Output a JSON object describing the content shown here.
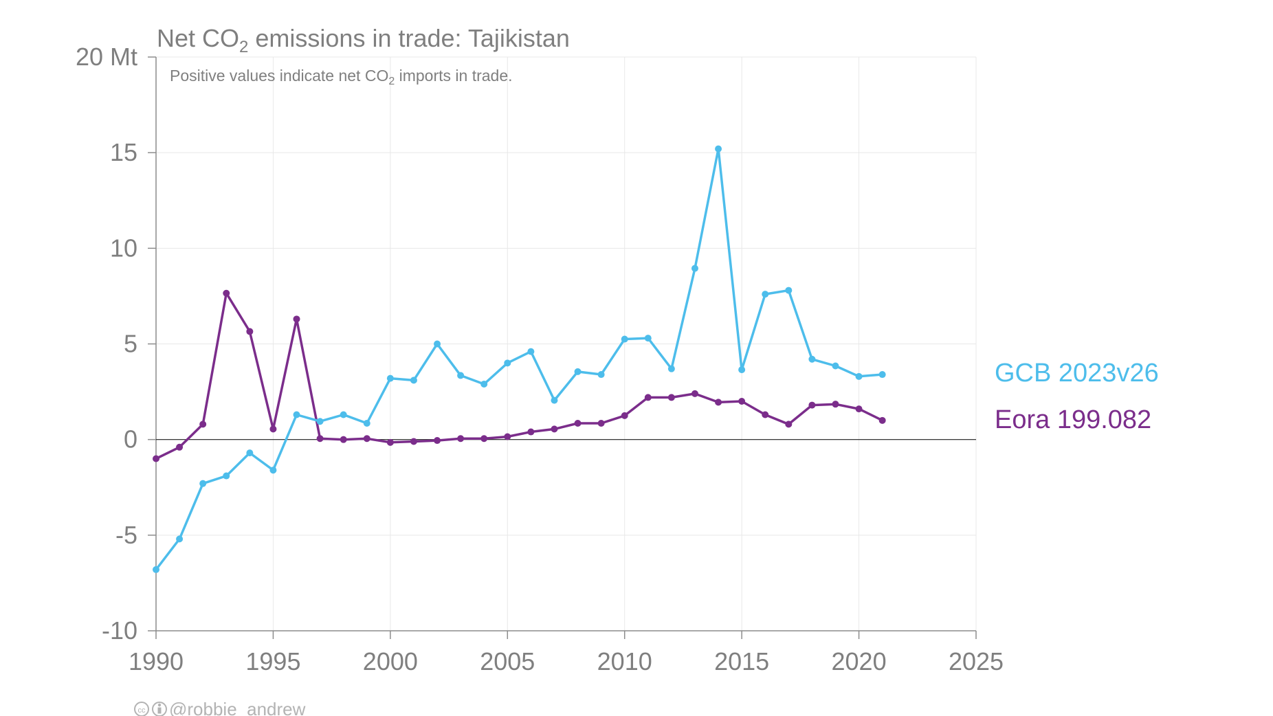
{
  "chart_data": {
    "type": "line",
    "title_prefix": "Net CO",
    "title_sub": "2",
    "title_suffix": " emissions in trade: Tajikistan",
    "subtitle_prefix": "Positive values indicate net CO",
    "subtitle_sub": "2",
    "subtitle_suffix": " imports in trade.",
    "xlim": [
      1990,
      2025
    ],
    "ylim": [
      -10,
      20
    ],
    "x_ticks": [
      1990,
      1995,
      2000,
      2005,
      2010,
      2015,
      2020,
      2025
    ],
    "y_ticks": [
      {
        "value": 20,
        "label": "20 Mt"
      },
      {
        "value": 15,
        "label": "15"
      },
      {
        "value": 10,
        "label": "10"
      },
      {
        "value": 5,
        "label": "5"
      },
      {
        "value": 0,
        "label": "0"
      },
      {
        "value": -5,
        "label": "-5"
      },
      {
        "value": -10,
        "label": "-10"
      }
    ],
    "grid": true,
    "legend_placement": "right",
    "x": [
      1990,
      1991,
      1992,
      1993,
      1994,
      1995,
      1996,
      1997,
      1998,
      1999,
      2000,
      2001,
      2002,
      2003,
      2004,
      2005,
      2006,
      2007,
      2008,
      2009,
      2010,
      2011,
      2012,
      2013,
      2014,
      2015,
      2016,
      2017,
      2018,
      2019,
      2020,
      2021
    ],
    "series": [
      {
        "name": "GCB 2023v26",
        "color": "#4dbdeb",
        "values": [
          -6.8,
          -5.2,
          -2.3,
          -1.9,
          -0.7,
          -1.6,
          1.3,
          0.95,
          1.3,
          0.85,
          3.2,
          3.1,
          5.0,
          3.35,
          2.9,
          4.0,
          4.6,
          2.05,
          3.55,
          3.4,
          5.25,
          5.3,
          3.7,
          8.95,
          15.2,
          3.65,
          7.6,
          7.8,
          4.2,
          3.85,
          3.3,
          3.4
        ]
      },
      {
        "name": "Eora 199.082",
        "color": "#7b2d8b",
        "values": [
          -1.0,
          -0.4,
          0.8,
          7.65,
          5.65,
          0.55,
          6.3,
          0.05,
          0.0,
          0.05,
          -0.15,
          -0.1,
          -0.05,
          0.05,
          0.05,
          0.15,
          0.4,
          0.55,
          0.85,
          0.85,
          1.25,
          2.2,
          2.2,
          2.4,
          1.95,
          2.0,
          1.3,
          0.8,
          1.8,
          1.85,
          1.6,
          1.0
        ]
      }
    ]
  },
  "credit": {
    "cc_icon": "cc-icon",
    "by_icon": "attribution-icon",
    "handle": "@robbie_andrew"
  }
}
